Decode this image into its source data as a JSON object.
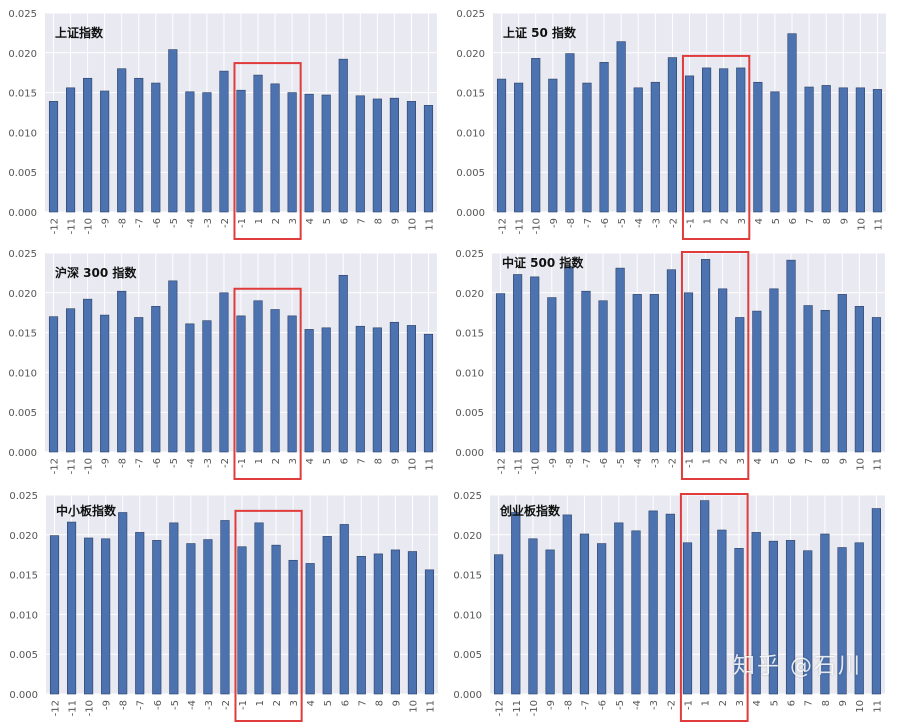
{
  "chart_data": [
    {
      "type": "bar",
      "title": "上证指数",
      "categories": [
        "-12",
        "-11",
        "-10",
        "-9",
        "-8",
        "-7",
        "-6",
        "-5",
        "-4",
        "-3",
        "-2",
        "-1",
        "1",
        "2",
        "3",
        "4",
        "5",
        "6",
        "7",
        "8",
        "9",
        "10",
        "11"
      ],
      "values": [
        0.0139,
        0.0156,
        0.0168,
        0.0152,
        0.018,
        0.0168,
        0.0162,
        0.0204,
        0.0151,
        0.015,
        0.0177,
        0.0153,
        0.0172,
        0.0161,
        0.015,
        0.0148,
        0.0147,
        0.0192,
        0.0146,
        0.0142,
        0.0143,
        0.0139,
        0.0134
      ],
      "ylim": [
        0,
        0.025
      ],
      "yticks": [
        "0.000",
        "0.005",
        "0.010",
        "0.015",
        "0.020",
        "0.025"
      ],
      "grid": true,
      "highlight": [
        "-1",
        "3"
      ]
    },
    {
      "type": "bar",
      "title": "上证 50 指数",
      "categories": [
        "-12",
        "-11",
        "-10",
        "-9",
        "-8",
        "-7",
        "-6",
        "-5",
        "-4",
        "-3",
        "-2",
        "-1",
        "1",
        "2",
        "3",
        "4",
        "5",
        "6",
        "7",
        "8",
        "9",
        "10",
        "11"
      ],
      "values": [
        0.0167,
        0.0162,
        0.0193,
        0.0167,
        0.0199,
        0.0162,
        0.0188,
        0.0214,
        0.0156,
        0.0163,
        0.0194,
        0.0171,
        0.0181,
        0.018,
        0.0181,
        0.0163,
        0.0151,
        0.0224,
        0.0157,
        0.0159,
        0.0156,
        0.0156,
        0.0154
      ],
      "ylim": [
        0,
        0.025
      ],
      "yticks": [
        "0.000",
        "0.005",
        "0.010",
        "0.015",
        "0.020",
        "0.025"
      ],
      "grid": true,
      "highlight": [
        "-1",
        "3"
      ]
    },
    {
      "type": "bar",
      "title": "沪深 300 指数",
      "categories": [
        "-12",
        "-11",
        "-10",
        "-9",
        "-8",
        "-7",
        "-6",
        "-5",
        "-4",
        "-3",
        "-2",
        "-1",
        "1",
        "2",
        "3",
        "4",
        "5",
        "6",
        "7",
        "8",
        "9",
        "10",
        "11"
      ],
      "values": [
        0.017,
        0.018,
        0.0192,
        0.0172,
        0.0202,
        0.0169,
        0.0183,
        0.0215,
        0.0161,
        0.0165,
        0.02,
        0.0171,
        0.019,
        0.0179,
        0.0171,
        0.0154,
        0.0156,
        0.0222,
        0.0158,
        0.0156,
        0.0163,
        0.0159,
        0.0148
      ],
      "ylim": [
        0,
        0.025
      ],
      "yticks": [
        "0.000",
        "0.005",
        "0.010",
        "0.015",
        "0.020",
        "0.025"
      ],
      "grid": true,
      "highlight": [
        "-1",
        "3"
      ]
    },
    {
      "type": "bar",
      "title": "中证 500 指数",
      "categories": [
        "-12",
        "-11",
        "-10",
        "-9",
        "-8",
        "-7",
        "-6",
        "-5",
        "-4",
        "-3",
        "-2",
        "-1",
        "1",
        "2",
        "3",
        "4",
        "5",
        "6",
        "7",
        "8",
        "9",
        "10",
        "11"
      ],
      "values": [
        0.0199,
        0.0223,
        0.022,
        0.0194,
        0.0233,
        0.0202,
        0.019,
        0.0231,
        0.0198,
        0.0198,
        0.0229,
        0.02,
        0.0242,
        0.0205,
        0.0169,
        0.0177,
        0.0205,
        0.0241,
        0.0184,
        0.0178,
        0.0198,
        0.0183,
        0.0169
      ],
      "ylim": [
        0,
        0.025
      ],
      "yticks": [
        "0.000",
        "0.005",
        "0.010",
        "0.015",
        "0.020",
        "0.025"
      ],
      "grid": true,
      "highlight": [
        "-1",
        "3"
      ]
    },
    {
      "type": "bar",
      "title": "中小板指数",
      "categories": [
        "-12",
        "-11",
        "-10",
        "-9",
        "-8",
        "-7",
        "-6",
        "-5",
        "-4",
        "-3",
        "-2",
        "-1",
        "1",
        "2",
        "3",
        "4",
        "5",
        "6",
        "7",
        "8",
        "9",
        "10",
        "11"
      ],
      "values": [
        0.0199,
        0.0216,
        0.0196,
        0.0195,
        0.0228,
        0.0203,
        0.0193,
        0.0215,
        0.0189,
        0.0194,
        0.0218,
        0.0185,
        0.0215,
        0.0187,
        0.0168,
        0.0164,
        0.0198,
        0.0213,
        0.0173,
        0.0176,
        0.0181,
        0.0179,
        0.0156
      ],
      "ylim": [
        0,
        0.025
      ],
      "yticks": [
        "0.000",
        "0.005",
        "0.010",
        "0.015",
        "0.020",
        "0.025"
      ],
      "grid": true,
      "highlight": [
        "-1",
        "3"
      ]
    },
    {
      "type": "bar",
      "title": "创业板指数",
      "categories": [
        "-12",
        "-11",
        "-10",
        "-9",
        "-8",
        "-7",
        "-6",
        "-5",
        "-4",
        "-3",
        "-2",
        "-1",
        "1",
        "2",
        "3",
        "4",
        "5",
        "6",
        "7",
        "8",
        "9",
        "10",
        "11"
      ],
      "values": [
        0.0175,
        0.0228,
        0.0195,
        0.0181,
        0.0225,
        0.0201,
        0.0189,
        0.0215,
        0.0205,
        0.023,
        0.0226,
        0.019,
        0.0243,
        0.0206,
        0.0183,
        0.0203,
        0.0192,
        0.0193,
        0.018,
        0.0201,
        0.0184,
        0.019,
        0.0233
      ],
      "ylim": [
        0,
        0.025
      ],
      "yticks": [
        "0.000",
        "0.005",
        "0.010",
        "0.015",
        "0.020",
        "0.025"
      ],
      "grid": true,
      "highlight": [
        "-1",
        "3"
      ]
    }
  ],
  "watermark": "知乎 @石川",
  "colors": {
    "bar": "#4c72b0",
    "bar_edge": "#2b3f66",
    "plot_bg": "#e8e9f1",
    "grid": "#ffffff",
    "highlight": "#e03c3c"
  }
}
